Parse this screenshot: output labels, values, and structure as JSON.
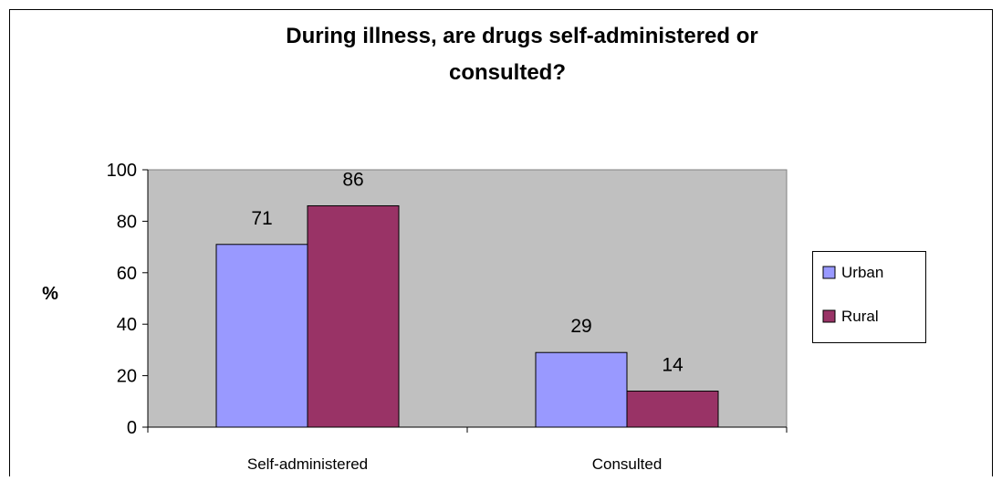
{
  "chart_data": {
    "type": "bar",
    "title_lines": [
      "During illness, are drugs self-administered or",
      "consulted?"
    ],
    "xlabel": "",
    "ylabel": "%",
    "categories": [
      "Self-administered",
      "Consulted"
    ],
    "series": [
      {
        "name": "Urban",
        "values": [
          71,
          29
        ]
      },
      {
        "name": "Rural",
        "values": [
          86,
          14
        ]
      }
    ],
    "ylim": [
      0,
      100
    ],
    "yticks": [
      0,
      20,
      40,
      60,
      80,
      100
    ],
    "grid": false,
    "legend_position": "right",
    "plot_background": "#C0C0C0",
    "colors": {
      "Urban": "#9999FF",
      "Rural": "#993366"
    }
  }
}
